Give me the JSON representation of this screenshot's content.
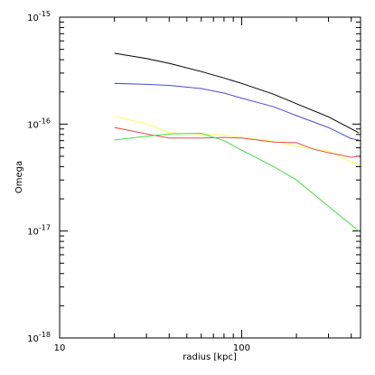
{
  "chart_data": {
    "type": "line",
    "xlabel": "radius [kpc]",
    "ylabel": "Omega",
    "xscale": "log",
    "yscale": "log",
    "xlim": [
      10,
      450
    ],
    "ylim": [
      1e-18,
      1e-15
    ],
    "grid": false,
    "x_ticks": [
      {
        "value": 10,
        "label": "10"
      },
      {
        "value": 100,
        "label": "100"
      }
    ],
    "y_ticks": [
      {
        "value": 1e-15,
        "base": "10",
        "exp": "-15"
      },
      {
        "value": 1e-16,
        "base": "10",
        "exp": "-16"
      },
      {
        "value": 1e-17,
        "base": "10",
        "exp": "-17"
      },
      {
        "value": 1e-18,
        "base": "10",
        "exp": "-18"
      }
    ],
    "series": [
      {
        "color": "#000000",
        "x": [
          20,
          30,
          40,
          60,
          80,
          100,
          150,
          200,
          300,
          440
        ],
        "y": [
          4.6e-16,
          4.1e-16,
          3.7e-16,
          3.1e-16,
          2.7e-16,
          2.4e-16,
          1.9e-16,
          1.55e-16,
          1.17e-16,
          8.3e-17
        ]
      },
      {
        "color": "#4b4bd6",
        "x": [
          20,
          30,
          40,
          60,
          80,
          100,
          150,
          200,
          300,
          400,
          440
        ],
        "y": [
          2.4e-16,
          2.35e-16,
          2.3e-16,
          2.15e-16,
          1.95e-16,
          1.75e-16,
          1.45e-16,
          1.2e-16,
          9.3e-17,
          7.3e-17,
          7.1e-17
        ]
      },
      {
        "color": "#ffff55",
        "x": [
          20,
          30,
          40,
          60,
          80,
          100,
          150,
          200,
          300,
          400,
          440
        ],
        "y": [
          1.18e-16,
          1e-16,
          8.3e-17,
          8e-17,
          7.9e-17,
          7.5e-17,
          6.9e-17,
          6.2e-17,
          5.6e-17,
          4.4e-17,
          4.2e-17
        ]
      },
      {
        "color": "#e05050",
        "x": [
          20,
          30,
          40,
          60,
          80,
          100,
          150,
          200,
          250,
          300,
          400,
          440
        ],
        "y": [
          9.3e-17,
          8.1e-17,
          7.4e-17,
          7.4e-17,
          7.5e-17,
          7.4e-17,
          6.8e-17,
          6.7e-17,
          5.8e-17,
          5.4e-17,
          4.9e-17,
          5e-17
        ]
      },
      {
        "color": "#44dd44",
        "x": [
          20,
          30,
          40,
          60,
          80,
          100,
          150,
          200,
          300,
          440
        ],
        "y": [
          7.1e-17,
          7.7e-17,
          8.1e-17,
          8.2e-17,
          7e-17,
          5.7e-17,
          4e-17,
          3e-17,
          1.7e-17,
          1e-17
        ]
      }
    ]
  }
}
